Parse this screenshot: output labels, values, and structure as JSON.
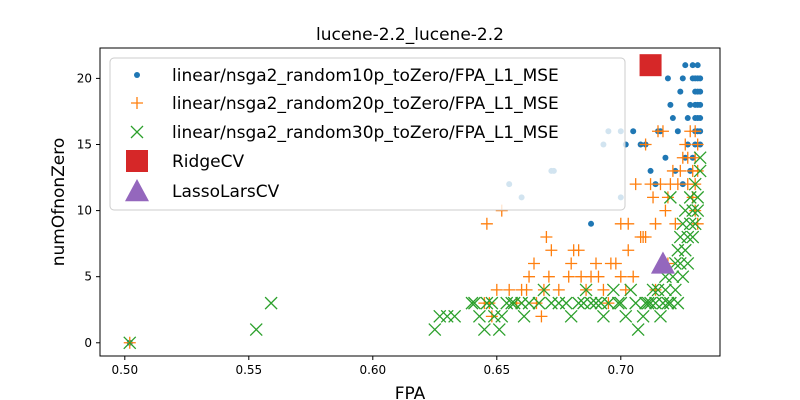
{
  "chart_data": {
    "type": "scatter",
    "title": "lucene-2.2_lucene-2.2",
    "xlabel": "FPA",
    "ylabel": "numOfnonZero",
    "xlim": [
      0.49,
      0.74
    ],
    "ylim": [
      -1,
      22.3
    ],
    "xticks": [
      0.5,
      0.55,
      0.6,
      0.65,
      0.7
    ],
    "xtick_labels": [
      "0.50",
      "0.55",
      "0.60",
      "0.65",
      "0.70"
    ],
    "yticks": [
      0,
      5,
      10,
      15,
      20
    ],
    "ytick_labels": [
      "0",
      "5",
      "10",
      "15",
      "20"
    ],
    "grid": false,
    "legend_position": "upper-left",
    "series": [
      {
        "name": "linear/nsga2_random10p_toZero/FPA_L1_MSE",
        "marker": "dot",
        "color": "#1f77b4",
        "points": [
          [
            0.502,
            0
          ],
          [
            0.655,
            12
          ],
          [
            0.66,
            11
          ],
          [
            0.672,
            13
          ],
          [
            0.673,
            13
          ],
          [
            0.688,
            9
          ],
          [
            0.695,
            16
          ],
          [
            0.693,
            15
          ],
          [
            0.7,
            16
          ],
          [
            0.702,
            15
          ],
          [
            0.705,
            16
          ],
          [
            0.708,
            15
          ],
          [
            0.7,
            11
          ],
          [
            0.71,
            15
          ],
          [
            0.712,
            13
          ],
          [
            0.714,
            12
          ],
          [
            0.715,
            16
          ],
          [
            0.716,
            16
          ],
          [
            0.718,
            14
          ],
          [
            0.719,
            20
          ],
          [
            0.72,
            18
          ],
          [
            0.721,
            17
          ],
          [
            0.723,
            16
          ],
          [
            0.724,
            19
          ],
          [
            0.725,
            20
          ],
          [
            0.726,
            21
          ],
          [
            0.727,
            17
          ],
          [
            0.728,
            18
          ],
          [
            0.729,
            20
          ],
          [
            0.729,
            21
          ],
          [
            0.73,
            15
          ],
          [
            0.73,
            16
          ],
          [
            0.73,
            17
          ],
          [
            0.73,
            18
          ],
          [
            0.73,
            19
          ],
          [
            0.73,
            20
          ],
          [
            0.731,
            16
          ],
          [
            0.731,
            17
          ],
          [
            0.731,
            18
          ],
          [
            0.731,
            19
          ],
          [
            0.731,
            20
          ],
          [
            0.731,
            21
          ],
          [
            0.732,
            15
          ],
          [
            0.732,
            16
          ],
          [
            0.732,
            17
          ],
          [
            0.732,
            18
          ],
          [
            0.732,
            19
          ],
          [
            0.732,
            20
          ],
          [
            0.729,
            14
          ],
          [
            0.728,
            13
          ],
          [
            0.726,
            14
          ],
          [
            0.727,
            15
          ],
          [
            0.725,
            12
          ],
          [
            0.722,
            13
          ]
        ]
      },
      {
        "name": "linear/nsga2_random20p_toZero/FPA_L1_MSE",
        "marker": "plus",
        "color": "#ff7f0e",
        "points": [
          [
            0.502,
            0
          ],
          [
            0.645,
            3
          ],
          [
            0.647,
            3
          ],
          [
            0.65,
            4
          ],
          [
            0.648,
            2
          ],
          [
            0.646,
            9
          ],
          [
            0.652,
            10
          ],
          [
            0.655,
            4
          ],
          [
            0.658,
            3
          ],
          [
            0.66,
            4
          ],
          [
            0.662,
            4
          ],
          [
            0.663,
            5
          ],
          [
            0.665,
            6
          ],
          [
            0.666,
            3
          ],
          [
            0.668,
            2
          ],
          [
            0.669,
            4
          ],
          [
            0.67,
            8
          ],
          [
            0.671,
            5
          ],
          [
            0.672,
            7
          ],
          [
            0.675,
            4
          ],
          [
            0.679,
            5
          ],
          [
            0.68,
            6
          ],
          [
            0.681,
            7
          ],
          [
            0.683,
            7
          ],
          [
            0.684,
            5
          ],
          [
            0.686,
            4
          ],
          [
            0.688,
            5
          ],
          [
            0.69,
            6
          ],
          [
            0.691,
            5
          ],
          [
            0.693,
            4
          ],
          [
            0.695,
            3
          ],
          [
            0.696,
            6
          ],
          [
            0.698,
            6
          ],
          [
            0.7,
            5
          ],
          [
            0.7,
            9
          ],
          [
            0.703,
            9
          ],
          [
            0.703,
            7
          ],
          [
            0.705,
            5
          ],
          [
            0.706,
            12
          ],
          [
            0.708,
            8
          ],
          [
            0.709,
            8
          ],
          [
            0.71,
            8
          ],
          [
            0.71,
            15
          ],
          [
            0.712,
            12
          ],
          [
            0.713,
            11
          ],
          [
            0.714,
            9
          ],
          [
            0.715,
            16
          ],
          [
            0.716,
            12
          ],
          [
            0.717,
            16
          ],
          [
            0.718,
            10
          ],
          [
            0.719,
            11
          ],
          [
            0.72,
            12
          ],
          [
            0.721,
            13
          ],
          [
            0.722,
            9
          ],
          [
            0.723,
            12
          ],
          [
            0.724,
            13
          ],
          [
            0.725,
            14
          ],
          [
            0.726,
            15
          ],
          [
            0.727,
            14
          ],
          [
            0.727,
            12
          ],
          [
            0.728,
            16
          ],
          [
            0.729,
            11
          ],
          [
            0.729,
            13
          ],
          [
            0.73,
            10
          ],
          [
            0.73,
            12
          ],
          [
            0.73,
            14
          ],
          [
            0.73,
            16
          ],
          [
            0.731,
            13
          ],
          [
            0.731,
            9
          ],
          [
            0.731,
            15
          ],
          [
            0.702,
            4
          ],
          [
            0.714,
            4
          ],
          [
            0.719,
            6
          ]
        ]
      },
      {
        "name": "linear/nsga2_random30p_toZero/FPA_L1_MSE",
        "marker": "x",
        "color": "#2ca02c",
        "points": [
          [
            0.502,
            0
          ],
          [
            0.553,
            1
          ],
          [
            0.559,
            3
          ],
          [
            0.625,
            1
          ],
          [
            0.627,
            2
          ],
          [
            0.63,
            2
          ],
          [
            0.633,
            2
          ],
          [
            0.64,
            3
          ],
          [
            0.641,
            3
          ],
          [
            0.643,
            2
          ],
          [
            0.645,
            1
          ],
          [
            0.646,
            3
          ],
          [
            0.648,
            3
          ],
          [
            0.649,
            2
          ],
          [
            0.651,
            1
          ],
          [
            0.652,
            2
          ],
          [
            0.654,
            3
          ],
          [
            0.656,
            3
          ],
          [
            0.657,
            3
          ],
          [
            0.66,
            3
          ],
          [
            0.661,
            2
          ],
          [
            0.663,
            3
          ],
          [
            0.667,
            3
          ],
          [
            0.669,
            4
          ],
          [
            0.672,
            3
          ],
          [
            0.675,
            3
          ],
          [
            0.678,
            3
          ],
          [
            0.68,
            2
          ],
          [
            0.683,
            3
          ],
          [
            0.685,
            3
          ],
          [
            0.686,
            4
          ],
          [
            0.688,
            3
          ],
          [
            0.69,
            3
          ],
          [
            0.692,
            3
          ],
          [
            0.693,
            2
          ],
          [
            0.695,
            3
          ],
          [
            0.697,
            4
          ],
          [
            0.699,
            3
          ],
          [
            0.7,
            3
          ],
          [
            0.702,
            2
          ],
          [
            0.704,
            4
          ],
          [
            0.706,
            3
          ],
          [
            0.707,
            1
          ],
          [
            0.709,
            2
          ],
          [
            0.71,
            3
          ],
          [
            0.711,
            3
          ],
          [
            0.712,
            3
          ],
          [
            0.713,
            4
          ],
          [
            0.714,
            3
          ],
          [
            0.715,
            4
          ],
          [
            0.716,
            2
          ],
          [
            0.717,
            3
          ],
          [
            0.718,
            4
          ],
          [
            0.719,
            3
          ],
          [
            0.72,
            3
          ],
          [
            0.721,
            5
          ],
          [
            0.722,
            4
          ],
          [
            0.722,
            6
          ],
          [
            0.723,
            7
          ],
          [
            0.724,
            8
          ],
          [
            0.724,
            6
          ],
          [
            0.725,
            5
          ],
          [
            0.725,
            9
          ],
          [
            0.726,
            10
          ],
          [
            0.726,
            7
          ],
          [
            0.727,
            6
          ],
          [
            0.727,
            8
          ],
          [
            0.728,
            9
          ],
          [
            0.728,
            11
          ],
          [
            0.729,
            8
          ],
          [
            0.729,
            10
          ],
          [
            0.73,
            9
          ],
          [
            0.73,
            12
          ],
          [
            0.731,
            10
          ],
          [
            0.731,
            11
          ],
          [
            0.732,
            13
          ],
          [
            0.732,
            14
          ],
          [
            0.72,
            11
          ],
          [
            0.718,
            5
          ],
          [
            0.723,
            3
          ]
        ]
      },
      {
        "name": "RidgeCV",
        "marker": "square",
        "color": "#d62728",
        "points": [
          [
            0.712,
            21
          ]
        ]
      },
      {
        "name": "LassoLarsCV",
        "marker": "triangle",
        "color": "#9467bd",
        "points": [
          [
            0.717,
            6
          ]
        ]
      }
    ]
  }
}
